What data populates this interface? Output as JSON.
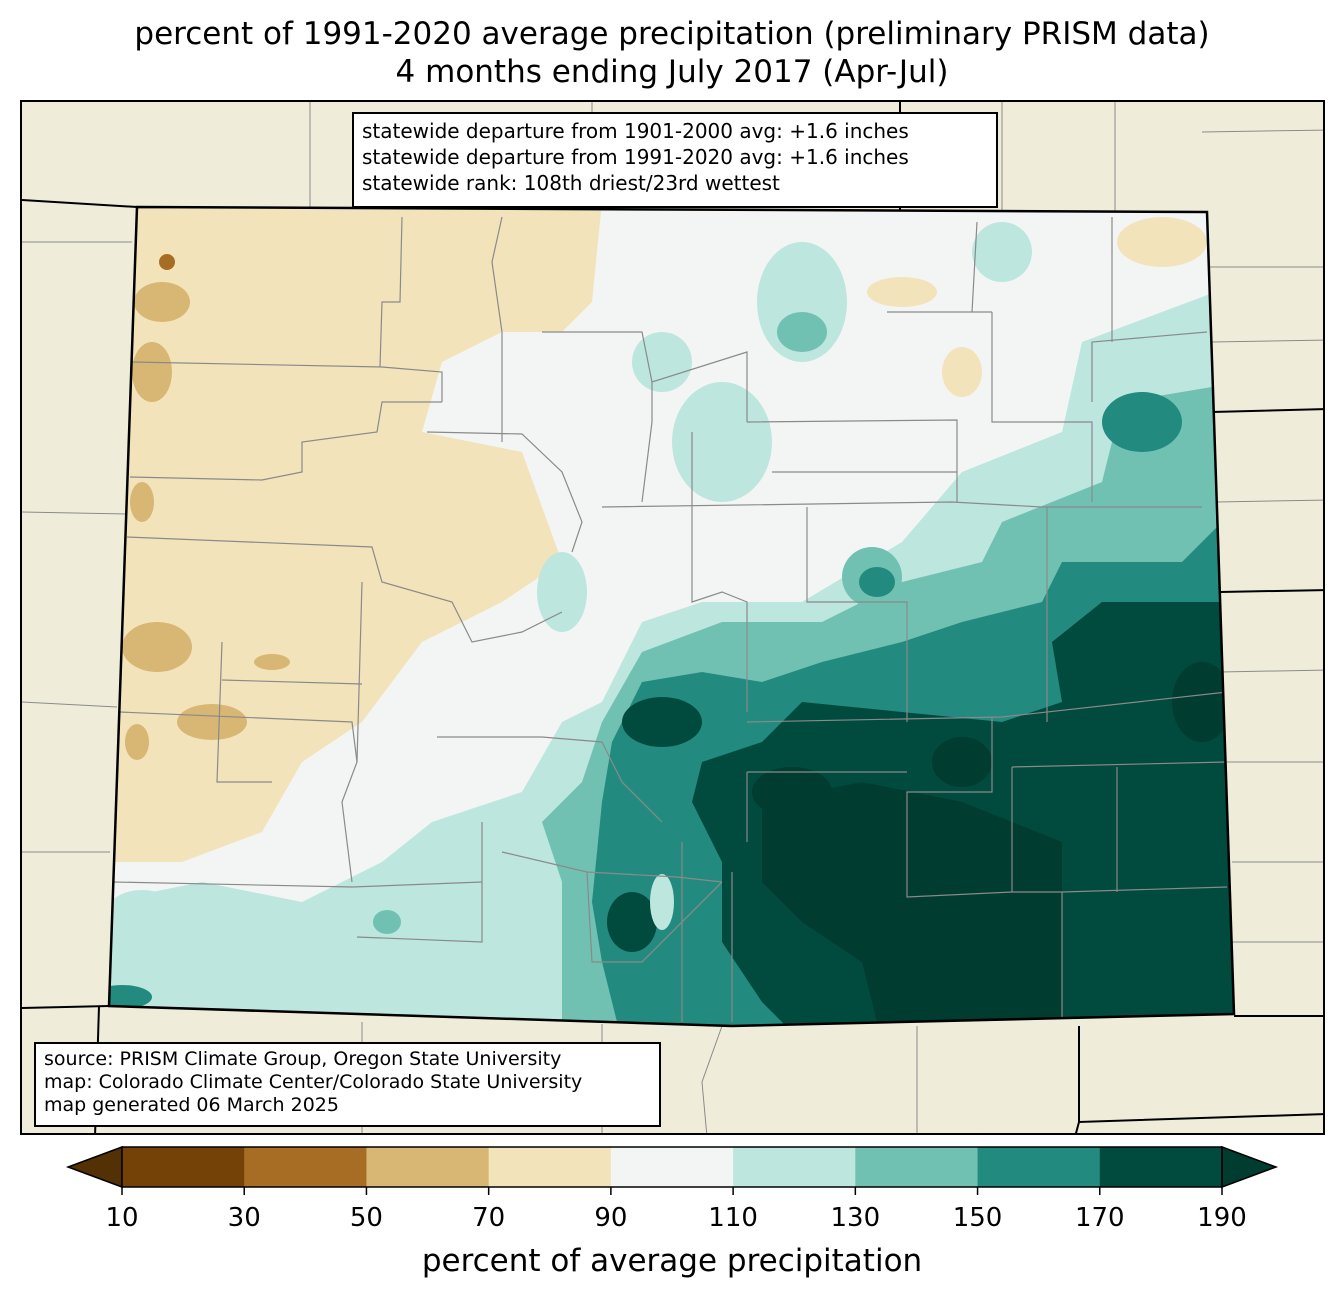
{
  "title": {
    "line1": "percent of 1991-2020 average precipitation (preliminary PRISM data)",
    "line2": "4 months ending July 2017 (Apr-Jul)"
  },
  "stats_box": {
    "line1": "statewide departure from 1901-2000 avg: +1.6 inches",
    "line2": "statewide departure from 1991-2020 avg: +1.6 inches",
    "line3": "statewide rank: 108th driest/23rd wettest"
  },
  "source_box": {
    "line1": "source: PRISM Climate Group, Oregon State University",
    "line2": "map: Colorado Climate Center/Colorado State University",
    "line3": "map generated 06 March 2025"
  },
  "colorbar": {
    "label": "percent of average precipitation",
    "ticks": [
      "10",
      "30",
      "50",
      "70",
      "90",
      "110",
      "130",
      "150",
      "170",
      "190"
    ],
    "under_color": "#543005",
    "over_color": "#003c30",
    "bins": [
      {
        "range": "10-30",
        "color": "#744107"
      },
      {
        "range": "30-50",
        "color": "#a86d25"
      },
      {
        "range": "50-70",
        "color": "#d8b673"
      },
      {
        "range": "70-90",
        "color": "#f3e3bb"
      },
      {
        "range": "90-110",
        "color": "#f3f5f4"
      },
      {
        "range": "110-130",
        "color": "#bde6df"
      },
      {
        "range": "130-150",
        "color": "#70c1b2"
      },
      {
        "range": "150-170",
        "color": "#238a80"
      },
      {
        "range": "170-190",
        "color": "#004a3e"
      }
    ]
  },
  "map": {
    "region": "Colorado",
    "background_color": "#efedda",
    "state_border_color": "#000000",
    "county_line_color": "#808080",
    "pattern": "drier than average (70-90%) in northwest; near normal central and north; wetter than average (130-190%+) across southeast and south-central"
  }
}
